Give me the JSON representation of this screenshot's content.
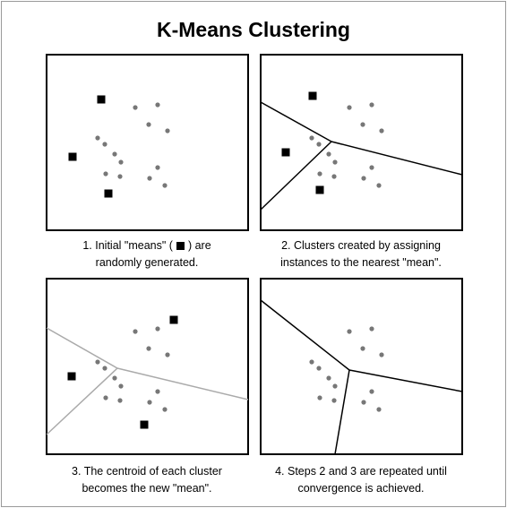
{
  "header": {
    "title": "K-Means Clustering"
  },
  "panels": [
    {
      "caption": [
        "1. Initial \"means\" (",
        ") are",
        "randomly generated."
      ]
    },
    {
      "caption": [
        "2. Clusters created by assigning",
        "instances to the nearest \"mean\"."
      ]
    },
    {
      "caption": [
        "3. The centroid of each cluster",
        "becomes the new \"mean\"."
      ]
    },
    {
      "caption": [
        "4. Steps 2 and 3 are repeated until",
        "convergence is achieved."
      ]
    }
  ]
}
